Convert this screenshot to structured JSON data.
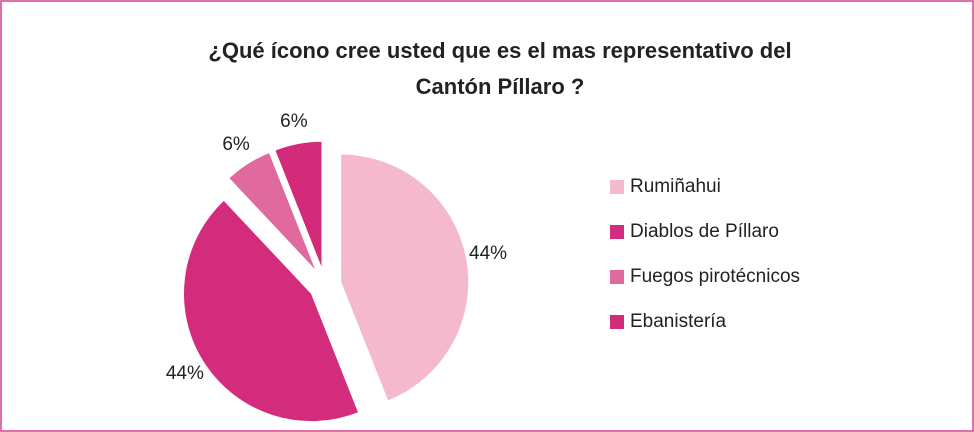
{
  "chart_data": {
    "type": "pie",
    "title": "¿Qué ícono cree usted que es el mas representativo del Cantón Píllaro ?",
    "categories": [
      "Rumiñahui",
      "Diablos de Píllaro",
      "Fuegos pirotécnicos",
      "Ebanistería"
    ],
    "values": [
      44,
      44,
      6,
      6
    ],
    "value_labels": [
      "44%",
      "44%",
      "6%",
      "6%"
    ],
    "colors": [
      "#f4b9cd",
      "#d42c7c",
      "#e0699d",
      "#d32a79"
    ],
    "legend": "right"
  }
}
